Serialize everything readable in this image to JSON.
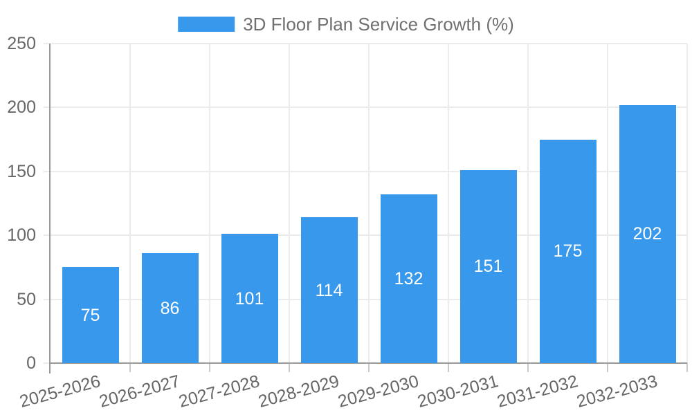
{
  "chart_data": {
    "type": "bar",
    "title": "",
    "legend": {
      "label": "3D Floor Plan Service Growth (%)",
      "position": "top"
    },
    "categories": [
      "2025-2026",
      "2026-2027",
      "2027-2028",
      "2028-2029",
      "2029-2030",
      "2030-2031",
      "2031-2032",
      "2032-2033"
    ],
    "series": [
      {
        "name": "3D Floor Plan Service Growth (%)",
        "values": [
          75,
          86,
          101,
          114,
          132,
          151,
          175,
          202
        ]
      }
    ],
    "value_labels_shown": true,
    "xlabel": "",
    "ylabel": "",
    "ylim": [
      0,
      250
    ],
    "yticks": [
      0,
      50,
      100,
      150,
      200,
      250
    ],
    "x_tick_rotation_deg": -15,
    "grid": {
      "horizontal": true,
      "vertical": true
    },
    "colors": {
      "bar": "#3898EC",
      "axis_line": "#999999",
      "gridline": "#EBEBEB",
      "tick_mark": "#C9C9C9",
      "tick_label": "#666666",
      "legend_text": "#707070",
      "value_label": "#FFFFFF",
      "background": "#FFFFFF"
    }
  }
}
